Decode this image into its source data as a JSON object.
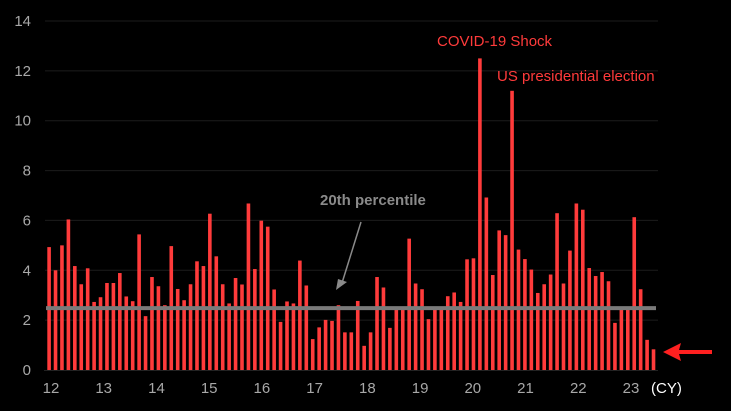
{
  "chart_data": {
    "type": "bar",
    "title": "",
    "xlabel": "(CY)",
    "ylabel": "",
    "ylim": [
      0,
      14
    ],
    "yticks": [
      0,
      2,
      4,
      6,
      8,
      10,
      12,
      14
    ],
    "ytick_labels": [
      "0",
      "2",
      "4",
      "6",
      "8",
      "10",
      "12",
      "14"
    ],
    "xtick_labels": [
      "12",
      "13",
      "14",
      "15",
      "16",
      "17",
      "18",
      "19",
      "20",
      "21",
      "22",
      "23"
    ],
    "grid": true,
    "bar_color": "#ff3b3b",
    "series": [
      {
        "name": "values",
        "values": [
          4.93,
          4.0,
          5.0,
          6.04,
          4.17,
          3.44,
          4.08,
          2.73,
          2.92,
          3.49,
          3.49,
          3.89,
          2.95,
          2.76,
          5.44,
          2.16,
          3.73,
          3.36,
          2.6,
          4.97,
          3.25,
          2.8,
          3.44,
          4.36,
          4.17,
          6.27,
          4.56,
          3.44,
          2.67,
          3.69,
          3.43,
          6.68,
          4.05,
          5.99,
          5.75,
          3.23,
          1.93,
          2.75,
          2.67,
          4.39,
          3.39,
          1.24,
          1.71,
          2.01,
          1.97,
          2.6,
          1.51,
          1.51,
          2.77,
          0.97,
          1.51,
          3.73,
          3.31,
          1.69,
          2.45,
          2.45,
          5.27,
          3.47,
          3.24,
          2.04,
          2.45,
          2.45,
          2.96,
          3.11,
          2.73,
          4.44,
          4.48,
          12.5,
          6.92,
          3.81,
          5.6,
          5.41,
          11.2,
          4.83,
          4.45,
          4.03,
          3.09,
          3.44,
          3.83,
          6.29,
          3.47,
          4.79,
          6.68,
          6.43,
          4.09,
          3.77,
          3.93,
          3.56,
          1.89,
          2.45,
          2.45,
          6.13,
          3.24,
          1.21,
          0.83
        ]
      }
    ],
    "reference_line": {
      "label": "20th percentile",
      "value": 2.48,
      "color": "#7a7a7a"
    },
    "annotations": [
      {
        "text": "COVID-19 Shock",
        "color": "#ff3b3b"
      },
      {
        "text": "US presidential election",
        "color": "#ff3b3b"
      },
      {
        "text": "20th percentile",
        "color": "#8a8a8a"
      }
    ],
    "latest_marker": {
      "icon": "arrow-left-icon",
      "color": "#ff2020"
    }
  }
}
